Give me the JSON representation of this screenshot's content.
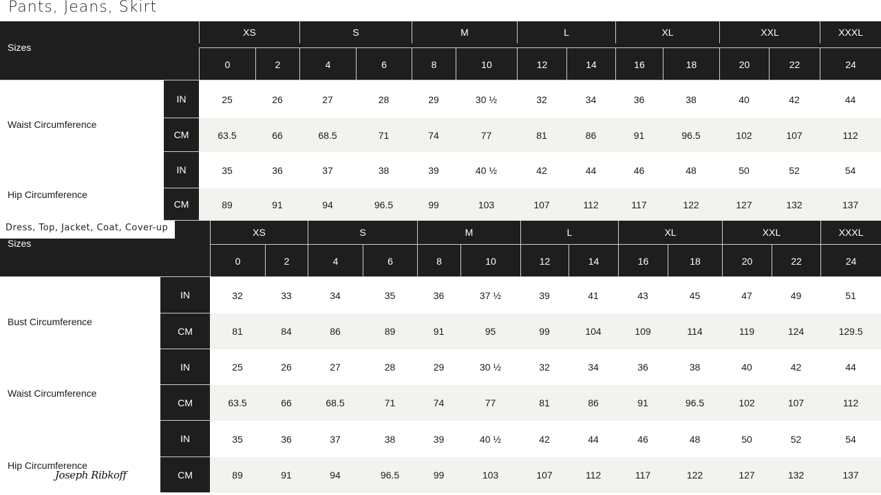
{
  "table1": {
    "title": "Pants, Jeans, Skirt",
    "sizes_label": "Sizes",
    "groups": [
      "XS",
      "S",
      "M",
      "L",
      "XL",
      "XXL",
      "XXXL"
    ],
    "sizes": [
      "0",
      "2",
      "4",
      "6",
      "8",
      "10",
      "12",
      "14",
      "16",
      "18",
      "20",
      "22",
      "24"
    ],
    "measurements": [
      {
        "label": "Waist Circumference",
        "rows": [
          {
            "unit": "IN",
            "values": [
              "25",
              "26",
              "27",
              "28",
              "29",
              "30 ½",
              "32",
              "34",
              "36",
              "38",
              "40",
              "42",
              "44"
            ]
          },
          {
            "unit": "CM",
            "values": [
              "63.5",
              "66",
              "68.5",
              "71",
              "74",
              "77",
              "81",
              "86",
              "91",
              "96.5",
              "102",
              "107",
              "112"
            ]
          }
        ]
      },
      {
        "label": "Hip Circumference",
        "rows": [
          {
            "unit": "IN",
            "values": [
              "35",
              "36",
              "37",
              "38",
              "39",
              "40 ½",
              "42",
              "44",
              "46",
              "48",
              "50",
              "52",
              "54"
            ]
          },
          {
            "unit": "CM",
            "values": [
              "89",
              "91",
              "94",
              "96.5",
              "99",
              "103",
              "107",
              "112",
              "117",
              "122",
              "127",
              "132",
              "137"
            ]
          }
        ]
      }
    ]
  },
  "table2": {
    "title": "Dress, Top, Jacket, Coat, Cover-up",
    "sizes_label": "Sizes",
    "groups": [
      "XS",
      "S",
      "M",
      "L",
      "XL",
      "XXL",
      "XXXL"
    ],
    "sizes": [
      "0",
      "2",
      "4",
      "6",
      "8",
      "10",
      "12",
      "14",
      "16",
      "18",
      "20",
      "22",
      "24"
    ],
    "measurements": [
      {
        "label": "Bust Circumference",
        "rows": [
          {
            "unit": "IN",
            "values": [
              "32",
              "33",
              "34",
              "35",
              "36",
              "37 ½",
              "39",
              "41",
              "43",
              "45",
              "47",
              "49",
              "51"
            ]
          },
          {
            "unit": "CM",
            "values": [
              "81",
              "84",
              "86",
              "89",
              "91",
              "95",
              "99",
              "104",
              "109",
              "114",
              "119",
              "124",
              "129.5"
            ]
          }
        ]
      },
      {
        "label": "Waist Circumference",
        "rows": [
          {
            "unit": "IN",
            "values": [
              "25",
              "26",
              "27",
              "28",
              "29",
              "30 ½",
              "32",
              "34",
              "36",
              "38",
              "40",
              "42",
              "44"
            ]
          },
          {
            "unit": "CM",
            "values": [
              "63.5",
              "66",
              "68.5",
              "71",
              "74",
              "77",
              "81",
              "86",
              "91",
              "96.5",
              "102",
              "107",
              "112"
            ]
          }
        ]
      },
      {
        "label": "Hip Circumference",
        "rows": [
          {
            "unit": "IN",
            "values": [
              "35",
              "36",
              "37",
              "38",
              "39",
              "40 ½",
              "42",
              "44",
              "46",
              "48",
              "50",
              "52",
              "54"
            ]
          },
          {
            "unit": "CM",
            "values": [
              "89",
              "91",
              "94",
              "96.5",
              "99",
              "103",
              "107",
              "112",
              "117",
              "122",
              "127",
              "132",
              "137"
            ]
          }
        ]
      }
    ]
  },
  "brand": {
    "signature": "Joseph Ribkoff"
  },
  "colors": {
    "header": "#1e1e1e",
    "stripe": "#f2f2ee",
    "text": "#1a1a1a"
  }
}
